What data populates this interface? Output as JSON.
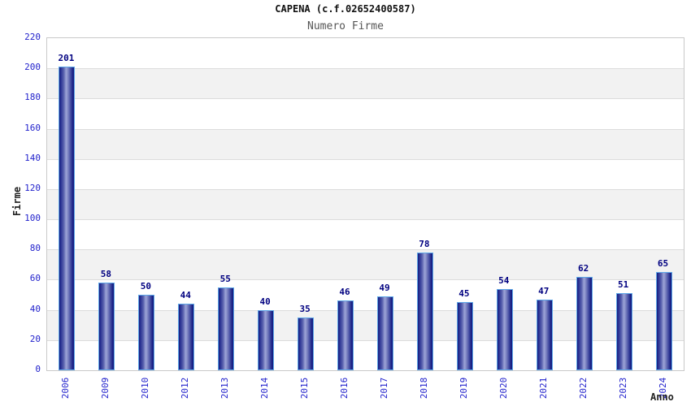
{
  "header": {
    "title": "CAPENA (c.f.02652400587)",
    "subtitle": "Numero Firme"
  },
  "chart_data": {
    "type": "bar",
    "title": "CAPENA (c.f.02652400587)",
    "subtitle": "Numero Firme",
    "xlabel": "Anno",
    "ylabel": "Firme",
    "categories": [
      "2006",
      "2009",
      "2010",
      "2012",
      "2013",
      "2014",
      "2015",
      "2016",
      "2017",
      "2018",
      "2019",
      "2020",
      "2021",
      "2022",
      "2023",
      "2024"
    ],
    "values": [
      201,
      58,
      50,
      44,
      55,
      40,
      35,
      46,
      49,
      78,
      45,
      54,
      47,
      62,
      51,
      65
    ],
    "ylim": [
      0,
      220
    ],
    "ytick_step": 20,
    "grid": "horizontal gridlines with alternating shaded bands",
    "legend": "none",
    "colors": {
      "bar_dark": "#141c7e",
      "bar_light": "#9ba2d6",
      "bar_outline": "#5ea7e8",
      "tick_label": "#2222cc",
      "value_label": "#000080",
      "band_gray": "#f2f2f2",
      "gridline": "#dcdcdc",
      "plot_border": "#c9c9c9",
      "title": "#111111",
      "subtitle": "#555555"
    }
  }
}
